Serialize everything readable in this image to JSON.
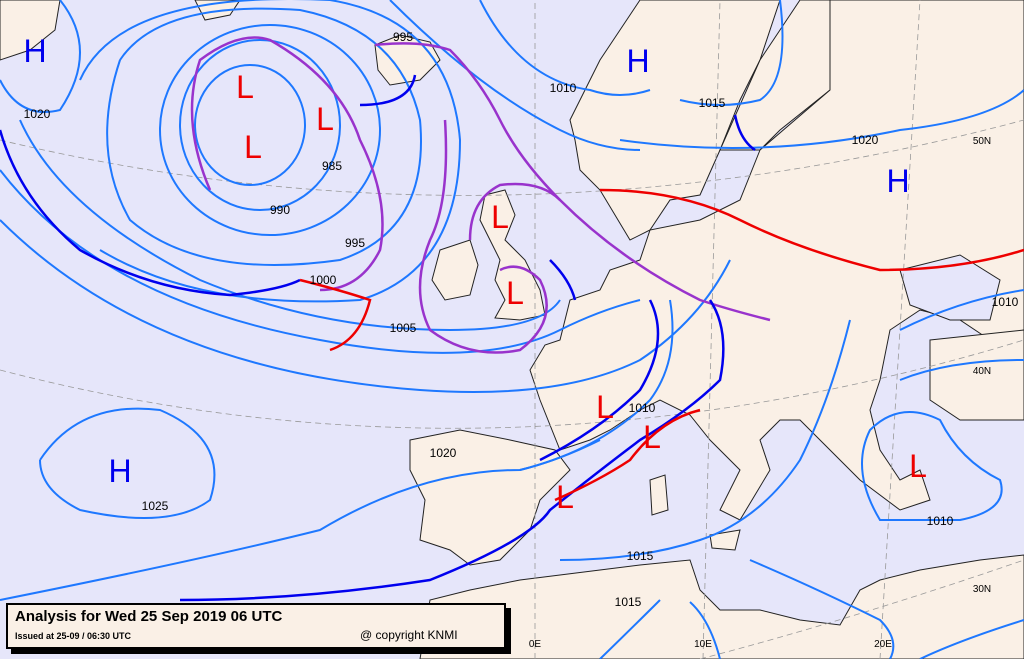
{
  "caption": {
    "title": "Analysis for Wed 25 Sep 2019 06 UTC",
    "issued": "Issued at 25-09 / 06:30 UTC",
    "copyright": "@ copyright KNMI"
  },
  "colors": {
    "sea": "#e6e6fa",
    "land": "#faf0e6",
    "isobar": "#1e78ff",
    "cold_front": "#0000ee",
    "warm_front": "#ee0000",
    "occluded_front": "#9933cc",
    "high": "#0000ee",
    "low": "#ee0000"
  },
  "pressure_centers": [
    {
      "type": "H",
      "label": "H"
    },
    {
      "type": "H",
      "label": "H"
    },
    {
      "type": "H",
      "label": "H"
    },
    {
      "type": "H",
      "label": "H"
    },
    {
      "type": "L",
      "label": "L"
    },
    {
      "type": "L",
      "label": "L"
    },
    {
      "type": "L",
      "label": "L"
    },
    {
      "type": "L",
      "label": "L"
    },
    {
      "type": "L",
      "label": "L"
    },
    {
      "type": "L",
      "label": "L"
    },
    {
      "type": "L",
      "label": "L"
    },
    {
      "type": "L",
      "label": "L"
    },
    {
      "type": "L",
      "label": "L"
    }
  ],
  "isobar_labels": [
    "995",
    "1010",
    "1015",
    "1020",
    "1020",
    "985",
    "990",
    "995",
    "1000",
    "1005",
    "1010",
    "1010",
    "1010",
    "1020",
    "1025",
    "1015",
    "1015"
  ],
  "grid_labels": [
    "50N",
    "40N",
    "30N",
    "0E",
    "10E",
    "20E"
  ]
}
